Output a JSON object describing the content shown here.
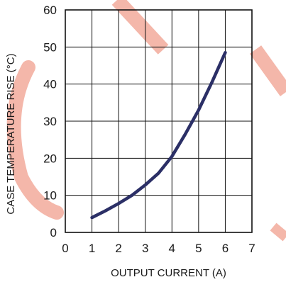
{
  "chart_data": {
    "type": "line",
    "title": "",
    "xlabel": "OUTPUT CURRENT (A)",
    "ylabel": "CASE TEMPERATURE RISE (°C)",
    "xlim": [
      0,
      7
    ],
    "ylim": [
      0,
      60
    ],
    "x_ticks": [
      "0",
      "1",
      "2",
      "3",
      "4",
      "5",
      "6",
      "7"
    ],
    "y_ticks": [
      "0",
      "10",
      "20",
      "30",
      "40",
      "50",
      "60"
    ],
    "grid": true,
    "legend": "none",
    "series": [
      {
        "color": "#2b2f66",
        "x": [
          1,
          1.5,
          2,
          2.5,
          3,
          3.5,
          4,
          4.5,
          5,
          5.5,
          6
        ],
        "y": [
          4,
          5.8,
          7.8,
          10,
          12.8,
          16,
          20.5,
          26.5,
          33,
          40.5,
          48.5
        ]
      }
    ],
    "watermark_color": "#f4b7aa"
  }
}
